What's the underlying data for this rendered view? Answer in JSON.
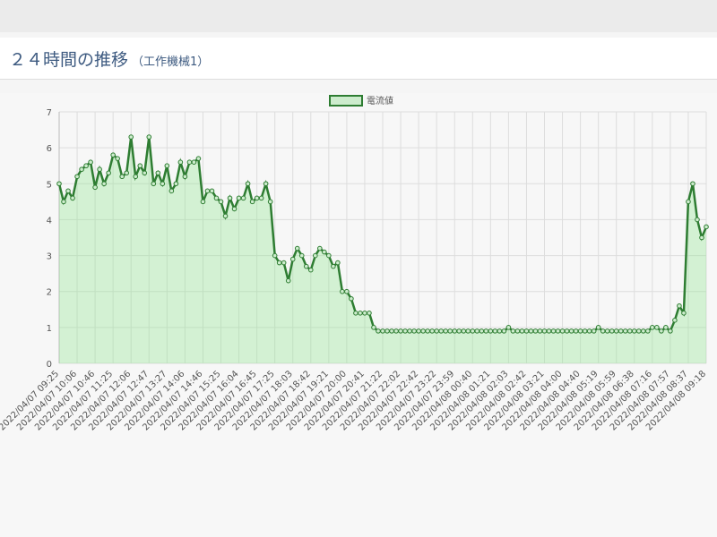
{
  "chart_data": {
    "type": "line",
    "title": "２４時間の推移",
    "subtitle": "（工作機械1）",
    "categories": [
      "2022/04/07 09:25",
      null,
      null,
      null,
      "2022/04/07 10:06",
      null,
      null,
      null,
      "2022/04/07 10:46",
      null,
      null,
      null,
      "2022/04/07 11:25",
      null,
      null,
      null,
      "2022/04/07 12:06",
      null,
      null,
      null,
      "2022/04/07 12:47",
      null,
      null,
      null,
      "2022/04/07 13:27",
      null,
      null,
      null,
      "2022/04/07 14:06",
      null,
      null,
      null,
      "2022/04/07 14:46",
      null,
      null,
      null,
      "2022/04/07 15:25",
      null,
      null,
      null,
      "2022/04/07 16:04",
      null,
      null,
      null,
      "2022/04/07 16:45",
      null,
      null,
      null,
      "2022/04/07 17:25",
      null,
      null,
      null,
      "2022/04/07 18:03",
      null,
      null,
      null,
      "2022/04/07 18:42",
      null,
      null,
      null,
      "2022/04/07 19:21",
      null,
      null,
      null,
      "2022/04/07 20:00",
      null,
      null,
      null,
      "2022/04/07 20:41",
      null,
      null,
      null,
      "2022/04/07 21:22",
      null,
      null,
      null,
      "2022/04/07 22:02",
      null,
      null,
      null,
      "2022/04/07 22:42",
      null,
      null,
      null,
      "2022/04/07 23:22",
      null,
      null,
      null,
      "2022/04/07 23:59",
      null,
      null,
      null,
      "2022/04/08 00:40",
      null,
      null,
      null,
      "2022/04/08 01:21",
      null,
      null,
      null,
      "2022/04/08 02:03",
      null,
      null,
      null,
      "2022/04/08 02:42",
      null,
      null,
      null,
      "2022/04/08 03:21",
      null,
      null,
      null,
      "2022/04/08 04:00",
      null,
      null,
      null,
      "2022/04/08 04:40",
      null,
      null,
      null,
      "2022/04/08 05:19",
      null,
      null,
      null,
      "2022/04/08 05:59",
      null,
      null,
      null,
      "2022/04/08 06:38",
      null,
      null,
      null,
      "2022/04/08 07:16",
      null,
      null,
      null,
      "2022/04/08 07:57",
      null,
      null,
      null,
      "2022/04/08 08:37",
      null,
      null,
      null,
      "2022/04/08 09:18"
    ],
    "series": [
      {
        "name": "電流値",
        "color": "#2e7d32",
        "values": [
          5.0,
          4.5,
          4.8,
          4.6,
          5.2,
          5.4,
          5.5,
          5.6,
          4.9,
          5.4,
          5.0,
          5.3,
          5.8,
          5.7,
          5.2,
          5.3,
          6.3,
          5.2,
          5.5,
          5.3,
          6.3,
          5.0,
          5.3,
          5.0,
          5.5,
          4.8,
          5.0,
          5.6,
          5.2,
          5.6,
          5.6,
          5.7,
          4.5,
          4.8,
          4.8,
          4.6,
          4.5,
          4.1,
          4.6,
          4.3,
          4.6,
          4.6,
          5.0,
          4.5,
          4.6,
          4.6,
          5.0,
          4.5,
          3.0,
          2.8,
          2.8,
          2.3,
          2.9,
          3.2,
          3.0,
          2.7,
          2.6,
          3.0,
          3.2,
          3.1,
          3.0,
          2.7,
          2.8,
          2.0,
          2.0,
          1.8,
          1.4,
          1.4,
          1.4,
          1.4,
          1.0,
          0.9,
          0.9,
          0.9,
          0.9,
          0.9,
          0.9,
          0.9,
          0.9,
          0.9,
          0.9,
          0.9,
          0.9,
          0.9,
          0.9,
          0.9,
          0.9,
          0.9,
          0.9,
          0.9,
          0.9,
          0.9,
          0.9,
          0.9,
          0.9,
          0.9,
          0.9,
          0.9,
          0.9,
          0.9,
          1.0,
          0.9,
          0.9,
          0.9,
          0.9,
          0.9,
          0.9,
          0.9,
          0.9,
          0.9,
          0.9,
          0.9,
          0.9,
          0.9,
          0.9,
          0.9,
          0.9,
          0.9,
          0.9,
          0.9,
          1.0,
          0.9,
          0.9,
          0.9,
          0.9,
          0.9,
          0.9,
          0.9,
          0.9,
          0.9,
          0.9,
          0.9,
          1.0,
          1.0,
          0.9,
          1.0,
          0.9,
          1.2,
          1.6,
          1.4,
          4.5,
          5.0,
          4.0,
          3.5,
          3.8
        ]
      }
    ],
    "ylim": [
      0,
      7
    ],
    "yticks": [
      0,
      1,
      2,
      3,
      4,
      5,
      6,
      7
    ],
    "grid": true,
    "legend": "top"
  }
}
